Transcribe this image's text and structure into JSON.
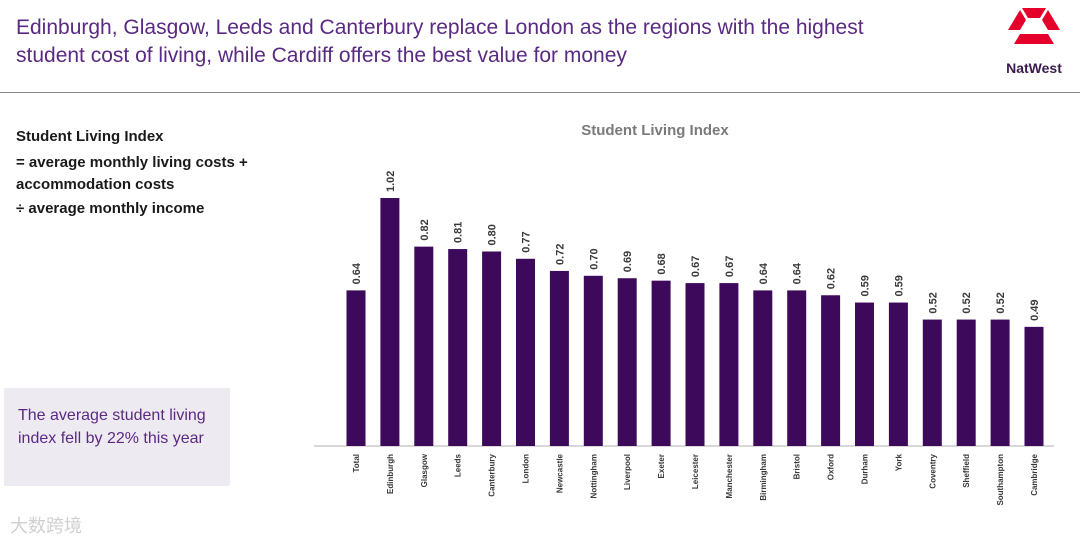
{
  "headline": "Edinburgh, Glasgow, Leeds and Canterbury replace London as the regions with the highest student cost of living, while Cardiff offers the best value for money",
  "logo": {
    "text": "NatWest",
    "color": "#e4002b"
  },
  "formula": {
    "title": "Student Living Index",
    "line1": "= average monthly living costs +",
    "line2": "accommodation costs",
    "line3": "÷ average monthly income"
  },
  "callout": {
    "text": "The average student living index fell by 22% this year"
  },
  "watermark": "大数跨境",
  "chart_data": {
    "type": "bar",
    "title": "Student Living Index",
    "categories": [
      "Total",
      "Edinburgh",
      "Glasgow",
      "Leeds",
      "Canterbury",
      "London",
      "Newcastle",
      "Nottingham",
      "Liverpool",
      "Exeter",
      "Leicester",
      "Manchester",
      "Birmingham",
      "Bristol",
      "Oxford",
      "Durham",
      "York",
      "Coventry",
      "Sheffield",
      "Southampton",
      "Cambridge"
    ],
    "values": [
      0.64,
      1.02,
      0.82,
      0.81,
      0.8,
      0.77,
      0.72,
      0.7,
      0.69,
      0.68,
      0.67,
      0.67,
      0.64,
      0.64,
      0.62,
      0.59,
      0.59,
      0.52,
      0.52,
      0.52,
      0.49
    ],
    "value_labels": [
      "0.64",
      "1.02",
      "0.82",
      "0.81",
      "0.80",
      "0.77",
      "0.72",
      "0.70",
      "0.69",
      "0.68",
      "0.67",
      "0.67",
      "0.64",
      "0.64",
      "0.62",
      "0.59",
      "0.59",
      "0.52",
      "0.52",
      "0.52",
      "0.49"
    ],
    "bar_color": "#3d0a5b",
    "ylim": [
      0,
      1.02
    ],
    "grid": false,
    "legend": false
  }
}
